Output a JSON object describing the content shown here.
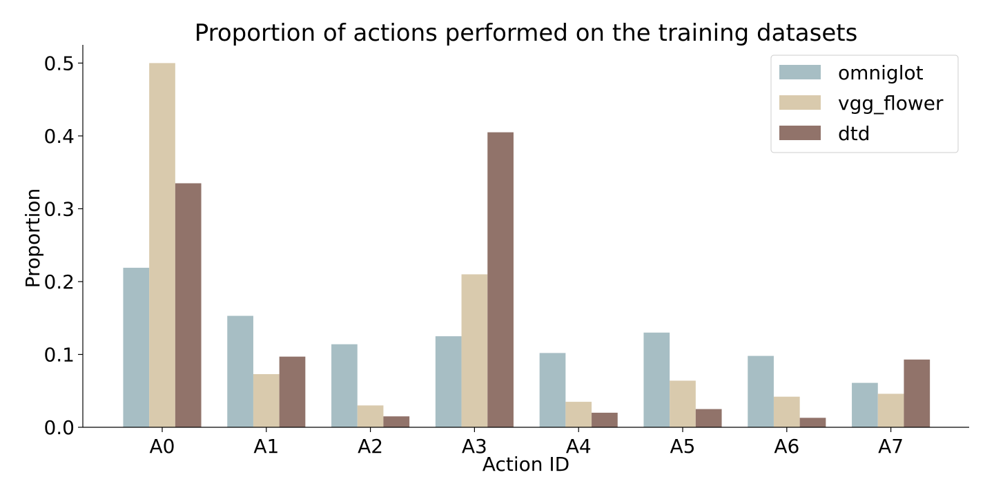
{
  "chart_data": {
    "type": "bar",
    "title": "Proportion of actions performed on the training datasets",
    "xlabel": "Action ID",
    "ylabel": "Proportion",
    "categories": [
      "A0",
      "A1",
      "A2",
      "A3",
      "A4",
      "A5",
      "A6",
      "A7"
    ],
    "ylim": [
      0,
      0.525
    ],
    "yticks": [
      0.0,
      0.1,
      0.2,
      0.3,
      0.4,
      0.5
    ],
    "ytick_labels": [
      "0.0",
      "0.1",
      "0.2",
      "0.3",
      "0.4",
      "0.5"
    ],
    "grid": false,
    "legend_position": "top-right",
    "series": [
      {
        "name": "omniglot",
        "color": "#a7bec4",
        "values": [
          0.219,
          0.153,
          0.114,
          0.125,
          0.102,
          0.13,
          0.098,
          0.061
        ]
      },
      {
        "name": "vgg_flower",
        "color": "#d9caad",
        "values": [
          0.5,
          0.073,
          0.03,
          0.21,
          0.035,
          0.064,
          0.042,
          0.046
        ]
      },
      {
        "name": "dtd",
        "color": "#91736a",
        "values": [
          0.335,
          0.097,
          0.015,
          0.405,
          0.02,
          0.025,
          0.013,
          0.093
        ]
      }
    ]
  }
}
